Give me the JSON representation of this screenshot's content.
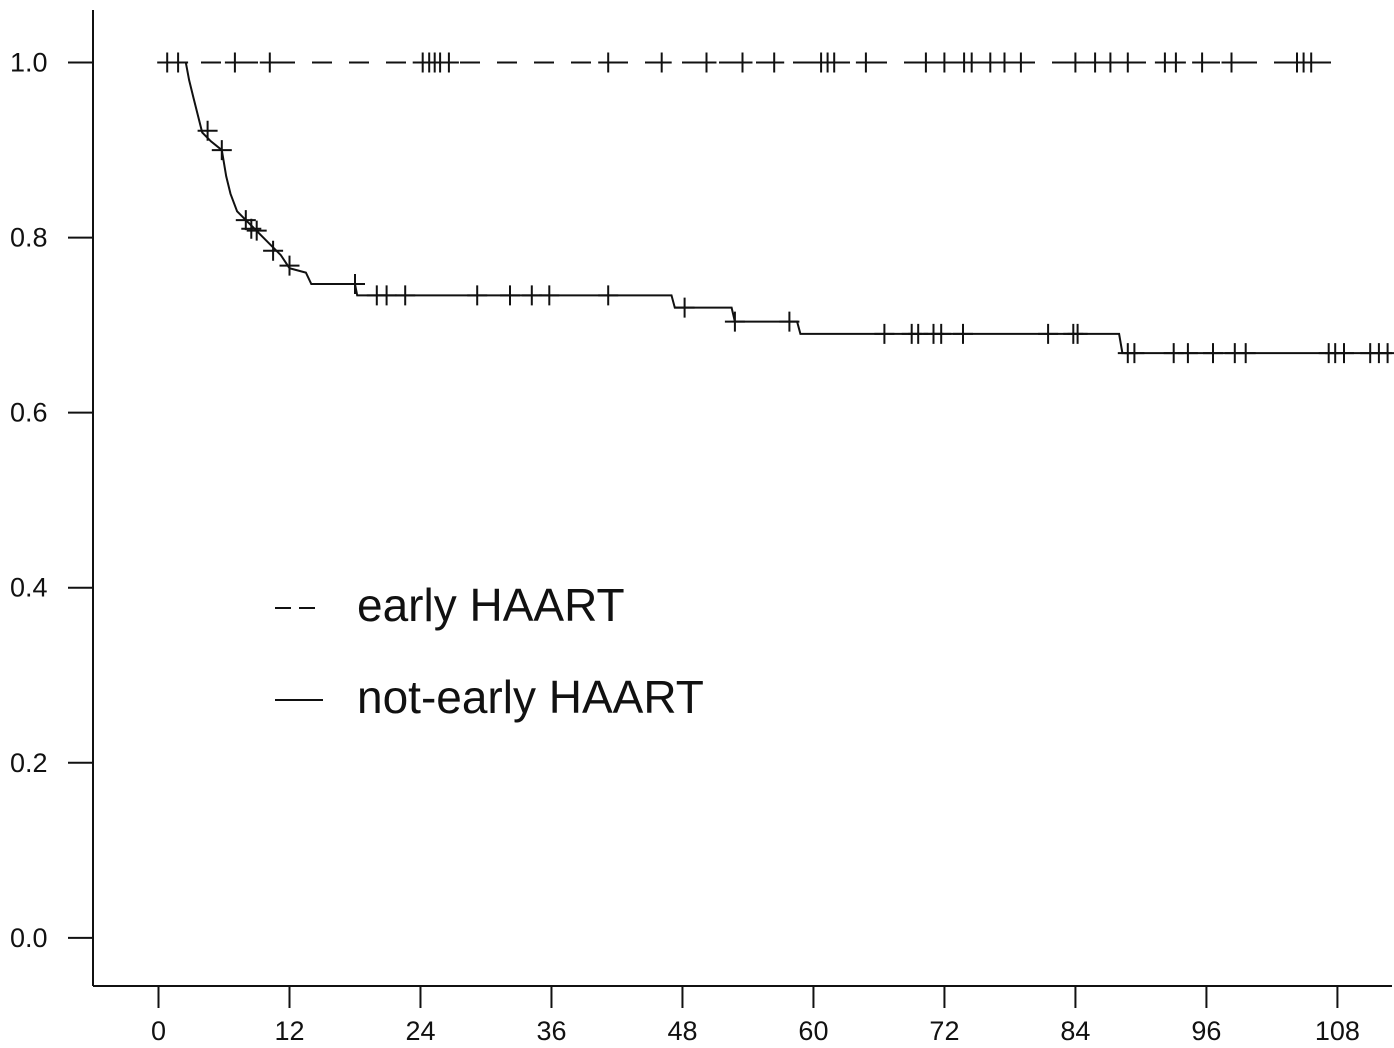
{
  "chart_data": {
    "type": "line",
    "title": "",
    "xlabel": "",
    "ylabel": "",
    "xlim": [
      -6,
      113
    ],
    "ylim": [
      -0.055,
      1.06
    ],
    "x_ticks": [
      0,
      12,
      24,
      36,
      48,
      60,
      72,
      84,
      96,
      108
    ],
    "x_tick_labels": [
      "0",
      "12",
      "24",
      "36",
      "48",
      "60",
      "72",
      "84",
      "96",
      "108"
    ],
    "y_ticks": [
      0.0,
      0.2,
      0.4,
      0.6,
      0.8,
      1.0
    ],
    "y_tick_labels": [
      "0.0",
      "0.2",
      "0.4",
      "0.6",
      "0.8",
      "1.0"
    ],
    "grid": false,
    "legend": {
      "position": "center-left"
    },
    "series": [
      {
        "name": "early HAART",
        "style": "dashed",
        "color": "#111111",
        "step": [
          [
            0.5,
            1.0
          ],
          [
            107.5,
            1.0
          ]
        ],
        "censored": [
          [
            0.8,
            1.0
          ],
          [
            1.8,
            1.0
          ],
          [
            7.0,
            1.0
          ],
          [
            10.2,
            1.0
          ],
          [
            24.2,
            1.0
          ],
          [
            24.8,
            1.0
          ],
          [
            25.3,
            1.0
          ],
          [
            25.8,
            1.0
          ],
          [
            26.6,
            1.0
          ],
          [
            41.2,
            1.0
          ],
          [
            46.1,
            1.0
          ],
          [
            50.2,
            1.0
          ],
          [
            53.5,
            1.0
          ],
          [
            56.4,
            1.0
          ],
          [
            60.7,
            1.0
          ],
          [
            61.3,
            1.0
          ],
          [
            61.9,
            1.0
          ],
          [
            64.8,
            1.0
          ],
          [
            70.3,
            1.0
          ],
          [
            72.0,
            1.0
          ],
          [
            73.8,
            1.0
          ],
          [
            74.5,
            1.0
          ],
          [
            76.2,
            1.0
          ],
          [
            77.5,
            1.0
          ],
          [
            79.0,
            1.0
          ],
          [
            84.0,
            1.0
          ],
          [
            85.8,
            1.0
          ],
          [
            87.2,
            1.0
          ],
          [
            88.8,
            1.0
          ],
          [
            92.2,
            1.0
          ],
          [
            93.2,
            1.0
          ],
          [
            95.6,
            1.0
          ],
          [
            98.3,
            1.0
          ],
          [
            104.3,
            1.0
          ],
          [
            104.9,
            1.0
          ],
          [
            105.6,
            1.0
          ]
        ]
      },
      {
        "name": "not-early HAART",
        "style": "solid",
        "color": "#111111",
        "step": [
          [
            1.5,
            1.0
          ],
          [
            2.5,
            1.0
          ],
          [
            2.8,
            0.98
          ],
          [
            3.2,
            0.96
          ],
          [
            3.6,
            0.94
          ],
          [
            4.0,
            0.92
          ],
          [
            4.8,
            0.91
          ],
          [
            5.8,
            0.9
          ],
          [
            6.2,
            0.87
          ],
          [
            6.6,
            0.85
          ],
          [
            7.2,
            0.83
          ],
          [
            8.0,
            0.82
          ],
          [
            8.8,
            0.81
          ],
          [
            9.6,
            0.8
          ],
          [
            10.4,
            0.79
          ],
          [
            11.2,
            0.78
          ],
          [
            12.0,
            0.765
          ],
          [
            13.5,
            0.76
          ],
          [
            14.0,
            0.747
          ],
          [
            18.0,
            0.747
          ],
          [
            18.2,
            0.734
          ],
          [
            47.0,
            0.734
          ],
          [
            47.3,
            0.72
          ],
          [
            52.5,
            0.72
          ],
          [
            52.8,
            0.704
          ],
          [
            58.5,
            0.704
          ],
          [
            58.8,
            0.69
          ],
          [
            88.0,
            0.69
          ],
          [
            88.3,
            0.668
          ],
          [
            113.0,
            0.668
          ]
        ],
        "censored": [
          [
            4.5,
            0.922
          ],
          [
            5.8,
            0.9
          ],
          [
            8.0,
            0.82
          ],
          [
            8.5,
            0.81
          ],
          [
            9.0,
            0.808
          ],
          [
            10.5,
            0.785
          ],
          [
            12.0,
            0.768
          ],
          [
            18.0,
            0.747
          ],
          [
            20.0,
            0.734
          ],
          [
            20.9,
            0.734
          ],
          [
            22.6,
            0.734
          ],
          [
            29.2,
            0.734
          ],
          [
            32.2,
            0.734
          ],
          [
            34.2,
            0.734
          ],
          [
            35.8,
            0.734
          ],
          [
            41.2,
            0.734
          ],
          [
            48.2,
            0.72
          ],
          [
            52.8,
            0.704
          ],
          [
            57.8,
            0.704
          ],
          [
            66.5,
            0.69
          ],
          [
            69.0,
            0.69
          ],
          [
            69.6,
            0.69
          ],
          [
            71.0,
            0.69
          ],
          [
            71.7,
            0.69
          ],
          [
            73.7,
            0.69
          ],
          [
            81.5,
            0.69
          ],
          [
            83.8,
            0.69
          ],
          [
            84.2,
            0.69
          ],
          [
            88.8,
            0.668
          ],
          [
            89.4,
            0.668
          ],
          [
            93.0,
            0.668
          ],
          [
            94.3,
            0.668
          ],
          [
            96.6,
            0.668
          ],
          [
            98.6,
            0.668
          ],
          [
            99.6,
            0.668
          ],
          [
            107.2,
            0.668
          ],
          [
            107.8,
            0.668
          ],
          [
            108.6,
            0.668
          ],
          [
            111.0,
            0.668
          ],
          [
            111.8,
            0.668
          ],
          [
            112.6,
            0.668
          ]
        ]
      }
    ]
  }
}
